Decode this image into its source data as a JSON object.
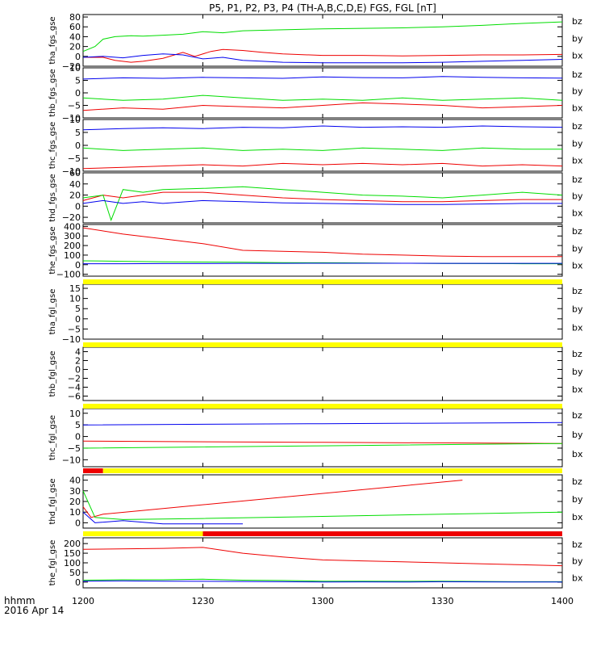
{
  "title": "P5, P1, P2, P3, P4 (TH-A,B,C,D,E) FGS, FGL [nT]",
  "footer": {
    "time_label": "hhmm",
    "date_label": "2016 Apr 14"
  },
  "colors": {
    "bx": "#0000ee",
    "by": "#00dd00",
    "bz": "#ee0000",
    "flag_yellow": "#ffff00",
    "flag_red": "#ee0000"
  },
  "chart_data": {
    "type": "line",
    "x_unit": "hhmm",
    "xlim": [
      "1200",
      "1400"
    ],
    "x_ticks": [
      "1200",
      "1230",
      "1300",
      "1330",
      "1400"
    ],
    "legend": [
      "bz",
      "by",
      "bx"
    ],
    "panels": [
      {
        "ylabel": "tha_fgs_gse",
        "ylim": [
          -20,
          85
        ],
        "yticks": [
          -20,
          0,
          20,
          40,
          60,
          80
        ],
        "series": [
          {
            "name": "bz",
            "x": [
              "12:00",
              "12:05",
              "12:08",
              "12:12",
              "12:15",
              "12:20",
              "12:25",
              "12:28",
              "12:32",
              "12:35",
              "12:40",
              "12:45",
              "12:50",
              "13:00",
              "13:10",
              "13:20",
              "13:30",
              "13:40",
              "13:50",
              "14:00"
            ],
            "values": [
              -2,
              -2,
              -8,
              -12,
              -10,
              -4,
              8,
              0,
              10,
              14,
              12,
              8,
              5,
              2,
              2,
              1,
              2,
              3,
              3,
              4
            ]
          },
          {
            "name": "by",
            "x": [
              "12:00",
              "12:03",
              "12:05",
              "12:08",
              "12:12",
              "12:15",
              "12:20",
              "12:25",
              "12:30",
              "12:35",
              "12:40",
              "12:50",
              "13:00",
              "13:10",
              "13:20",
              "13:30",
              "13:40",
              "13:50",
              "14:00"
            ],
            "values": [
              10,
              20,
              35,
              40,
              42,
              41,
              43,
              45,
              50,
              48,
              52,
              54,
              56,
              57,
              58,
              60,
              63,
              67,
              70
            ]
          },
          {
            "name": "bx",
            "x": [
              "12:00",
              "12:05",
              "12:10",
              "12:15",
              "12:20",
              "12:25",
              "12:30",
              "12:35",
              "12:40",
              "12:45",
              "12:50",
              "13:00",
              "13:10",
              "13:20",
              "13:30",
              "13:40",
              "13:50",
              "14:00"
            ],
            "values": [
              -2,
              0,
              -3,
              2,
              5,
              3,
              -5,
              -2,
              -8,
              -10,
              -12,
              -13,
              -13,
              -13,
              -12,
              -10,
              -8,
              -6
            ]
          }
        ]
      },
      {
        "ylabel": "thb_fgs_gse",
        "ylim": [
          -10,
          10
        ],
        "yticks": [
          -10,
          -5,
          0,
          5,
          10
        ],
        "series": [
          {
            "name": "bz",
            "x": [
              "12:00",
              "12:10",
              "12:20",
              "12:30",
              "12:40",
              "12:50",
              "13:00",
              "13:10",
              "13:20",
              "13:30",
              "13:40",
              "13:50",
              "14:00"
            ],
            "values": [
              -7,
              -6,
              -6.5,
              -5,
              -5.5,
              -6,
              -5,
              -4,
              -4.5,
              -5,
              -6,
              -5.5,
              -5
            ]
          },
          {
            "name": "by",
            "x": [
              "12:00",
              "12:10",
              "12:20",
              "12:30",
              "12:40",
              "12:50",
              "13:00",
              "13:10",
              "13:20",
              "13:30",
              "13:40",
              "13:50",
              "14:00"
            ],
            "values": [
              -2,
              -3,
              -2.5,
              -1,
              -2,
              -3,
              -2.5,
              -3,
              -2,
              -3,
              -2.5,
              -2,
              -3
            ]
          },
          {
            "name": "bx",
            "x": [
              "12:00",
              "12:10",
              "12:20",
              "12:30",
              "12:40",
              "12:50",
              "13:00",
              "13:10",
              "13:20",
              "13:30",
              "13:40",
              "13:50",
              "14:00"
            ],
            "values": [
              5.5,
              6,
              5.8,
              6.2,
              6,
              5.8,
              6.4,
              6.1,
              6,
              6.5,
              6.2,
              6,
              5.9
            ]
          }
        ]
      },
      {
        "ylabel": "thc_fgs_gse",
        "ylim": [
          -10,
          10
        ],
        "yticks": [
          -10,
          -5,
          0,
          5,
          10
        ],
        "series": [
          {
            "name": "bz",
            "x": [
              "12:00",
              "12:10",
              "12:20",
              "12:30",
              "12:40",
              "12:50",
              "13:00",
              "13:10",
              "13:20",
              "13:30",
              "13:40",
              "13:50",
              "14:00"
            ],
            "values": [
              -9,
              -8.5,
              -8,
              -7.5,
              -8,
              -7,
              -7.5,
              -7,
              -7.5,
              -7,
              -8,
              -7.5,
              -8
            ]
          },
          {
            "name": "by",
            "x": [
              "12:00",
              "12:10",
              "12:20",
              "12:30",
              "12:40",
              "12:50",
              "13:00",
              "13:10",
              "13:20",
              "13:30",
              "13:40",
              "13:50",
              "14:00"
            ],
            "values": [
              -1,
              -2,
              -1.5,
              -1,
              -2,
              -1.5,
              -2,
              -1,
              -1.5,
              -2,
              -1,
              -1.5,
              -1.5
            ]
          },
          {
            "name": "bx",
            "x": [
              "12:00",
              "12:10",
              "12:20",
              "12:30",
              "12:40",
              "12:50",
              "13:00",
              "13:10",
              "13:20",
              "13:30",
              "13:40",
              "13:50",
              "14:00"
            ],
            "values": [
              6,
              6.5,
              6.8,
              6.5,
              7,
              6.8,
              7.5,
              7,
              7.2,
              7,
              7.5,
              7.2,
              7
            ]
          }
        ]
      },
      {
        "ylabel": "thd_fgs_gse",
        "ylim": [
          -30,
          60
        ],
        "yticks": [
          -20,
          0,
          20,
          40,
          60
        ],
        "series": [
          {
            "name": "bz",
            "x": [
              "12:00",
              "12:05",
              "12:10",
              "12:15",
              "12:20",
              "12:30",
              "12:40",
              "12:50",
              "13:00",
              "13:10",
              "13:20",
              "13:30",
              "13:40",
              "13:50",
              "14:00"
            ],
            "values": [
              10,
              20,
              15,
              20,
              25,
              25,
              20,
              15,
              12,
              10,
              8,
              8,
              10,
              12,
              12
            ]
          },
          {
            "name": "by",
            "x": [
              "12:00",
              "12:05",
              "12:07",
              "12:10",
              "12:15",
              "12:20",
              "12:30",
              "12:40",
              "12:50",
              "13:00",
              "13:10",
              "13:20",
              "13:30",
              "13:40",
              "13:50",
              "14:00"
            ],
            "values": [
              15,
              20,
              -25,
              30,
              25,
              30,
              32,
              35,
              30,
              25,
              20,
              18,
              15,
              20,
              25,
              20
            ]
          },
          {
            "name": "bx",
            "x": [
              "12:00",
              "12:05",
              "12:10",
              "12:15",
              "12:20",
              "12:30",
              "12:40",
              "12:50",
              "13:00",
              "13:10",
              "13:20",
              "13:30",
              "13:40",
              "13:50",
              "14:00"
            ],
            "values": [
              5,
              10,
              5,
              8,
              5,
              10,
              8,
              6,
              5,
              4,
              3,
              3,
              4,
              5,
              5
            ]
          }
        ]
      },
      {
        "ylabel": "the_fgs_gse",
        "ylim": [
          -120,
          420
        ],
        "yticks": [
          -100,
          0,
          100,
          200,
          300,
          400
        ],
        "series": [
          {
            "name": "bz",
            "x": [
              "12:00",
              "12:10",
              "12:20",
              "12:30",
              "12:40",
              "12:50",
              "13:00",
              "13:10",
              "13:20",
              "13:30",
              "13:40",
              "13:50",
              "14:00"
            ],
            "values": [
              385,
              320,
              270,
              220,
              150,
              140,
              130,
              110,
              100,
              90,
              85,
              85,
              85
            ]
          },
          {
            "name": "by",
            "x": [
              "12:00",
              "12:10",
              "12:20",
              "12:30",
              "12:40",
              "12:50",
              "13:00",
              "13:10",
              "13:20",
              "13:30",
              "13:40",
              "13:50",
              "14:00"
            ],
            "values": [
              40,
              35,
              30,
              28,
              25,
              22,
              20,
              18,
              15,
              13,
              12,
              10,
              10
            ]
          },
          {
            "name": "bx",
            "x": [
              "12:00",
              "12:10",
              "12:20",
              "12:30",
              "12:40",
              "12:50",
              "13:00",
              "13:10",
              "13:20",
              "13:30",
              "13:40",
              "13:50",
              "14:00"
            ],
            "values": [
              10,
              10,
              12,
              12,
              14,
              14,
              15,
              15,
              15,
              14,
              14,
              14,
              14
            ]
          }
        ]
      },
      {
        "ylabel": "tha_fgl_gse",
        "ylim": [
          -10,
          17
        ],
        "yticks": [
          -10,
          -5,
          0,
          5,
          10,
          15
        ],
        "series": []
      },
      {
        "ylabel": "thb_fgl_gse",
        "ylim": [
          -7,
          5
        ],
        "yticks": [
          -6,
          -4,
          -2,
          0,
          2,
          4
        ],
        "series": []
      },
      {
        "ylabel": "thc_fgl_gse",
        "ylim": [
          -13,
          12
        ],
        "yticks": [
          -10,
          -5,
          0,
          5,
          10
        ],
        "series": [
          {
            "name": "bz",
            "x": [
              "12:00",
              "13:00",
              "14:00"
            ],
            "values": [
              -2,
              -2.5,
              -3
            ]
          },
          {
            "name": "by",
            "x": [
              "12:00",
              "13:00",
              "14:00"
            ],
            "values": [
              -5,
              -4,
              -3
            ]
          },
          {
            "name": "bx",
            "x": [
              "12:00",
              "13:00",
              "14:00"
            ],
            "values": [
              5,
              5.5,
              6
            ]
          }
        ]
      },
      {
        "ylabel": "thd_fgl_gse",
        "ylim": [
          -5,
          45
        ],
        "yticks": [
          0,
          10,
          20,
          30,
          40
        ],
        "series": [
          {
            "name": "bz",
            "x": [
              "12:00",
              "12:02",
              "12:05",
              "13:35"
            ],
            "values": [
              15,
              5,
              8,
              40
            ]
          },
          {
            "name": "by",
            "x": [
              "12:00",
              "12:03",
              "12:10",
              "12:30",
              "13:00",
              "13:30",
              "14:00"
            ],
            "values": [
              30,
              5,
              3,
              4,
              6,
              8,
              10
            ]
          },
          {
            "name": "bx",
            "x": [
              "12:00",
              "12:03",
              "12:10",
              "12:20",
              "12:40"
            ],
            "values": [
              10,
              0,
              2,
              -1,
              -1
            ]
          }
        ]
      },
      {
        "ylabel": "the_fgl_gse",
        "ylim": [
          -30,
          230
        ],
        "yticks": [
          0,
          50,
          100,
          150,
          200
        ],
        "series": [
          {
            "name": "bz",
            "x": [
              "12:00",
              "12:20",
              "12:30",
              "12:40",
              "12:50",
              "13:00",
              "13:10",
              "13:20",
              "13:30",
              "13:40",
              "13:50",
              "14:00"
            ],
            "values": [
              170,
              175,
              180,
              150,
              130,
              115,
              110,
              105,
              100,
              95,
              90,
              85
            ]
          },
          {
            "name": "by",
            "x": [
              "12:00",
              "12:10",
              "12:20",
              "12:30",
              "12:40",
              "12:50",
              "13:00",
              "13:10",
              "13:20",
              "13:30",
              "13:40",
              "13:50",
              "14:00"
            ],
            "values": [
              10,
              12,
              12,
              15,
              10,
              8,
              5,
              5,
              4,
              5,
              3,
              2,
              2
            ]
          },
          {
            "name": "bx",
            "x": [
              "12:00",
              "12:10",
              "12:20",
              "12:30",
              "12:40",
              "12:50",
              "13:00",
              "13:10",
              "13:20",
              "13:30",
              "13:40",
              "13:50",
              "14:00"
            ],
            "values": [
              5,
              6,
              5,
              4,
              3,
              2,
              0,
              1,
              0,
              2,
              1,
              0,
              0
            ]
          }
        ]
      }
    ],
    "flag_bars": [
      {
        "segments": [
          {
            "from": "12:00",
            "to": "14:00",
            "color": "yellow"
          }
        ]
      },
      {
        "segments": [
          {
            "from": "12:00",
            "to": "14:00",
            "color": "yellow"
          }
        ]
      },
      {
        "segments": [
          {
            "from": "12:00",
            "to": "14:00",
            "color": "yellow"
          }
        ]
      },
      {
        "segments": [
          {
            "from": "12:00",
            "to": "12:05",
            "color": "red"
          },
          {
            "from": "12:05",
            "to": "14:00",
            "color": "yellow"
          }
        ]
      },
      {
        "segments": [
          {
            "from": "12:00",
            "to": "12:30",
            "color": "yellow"
          },
          {
            "from": "12:30",
            "to": "14:00",
            "color": "red"
          }
        ]
      }
    ]
  }
}
